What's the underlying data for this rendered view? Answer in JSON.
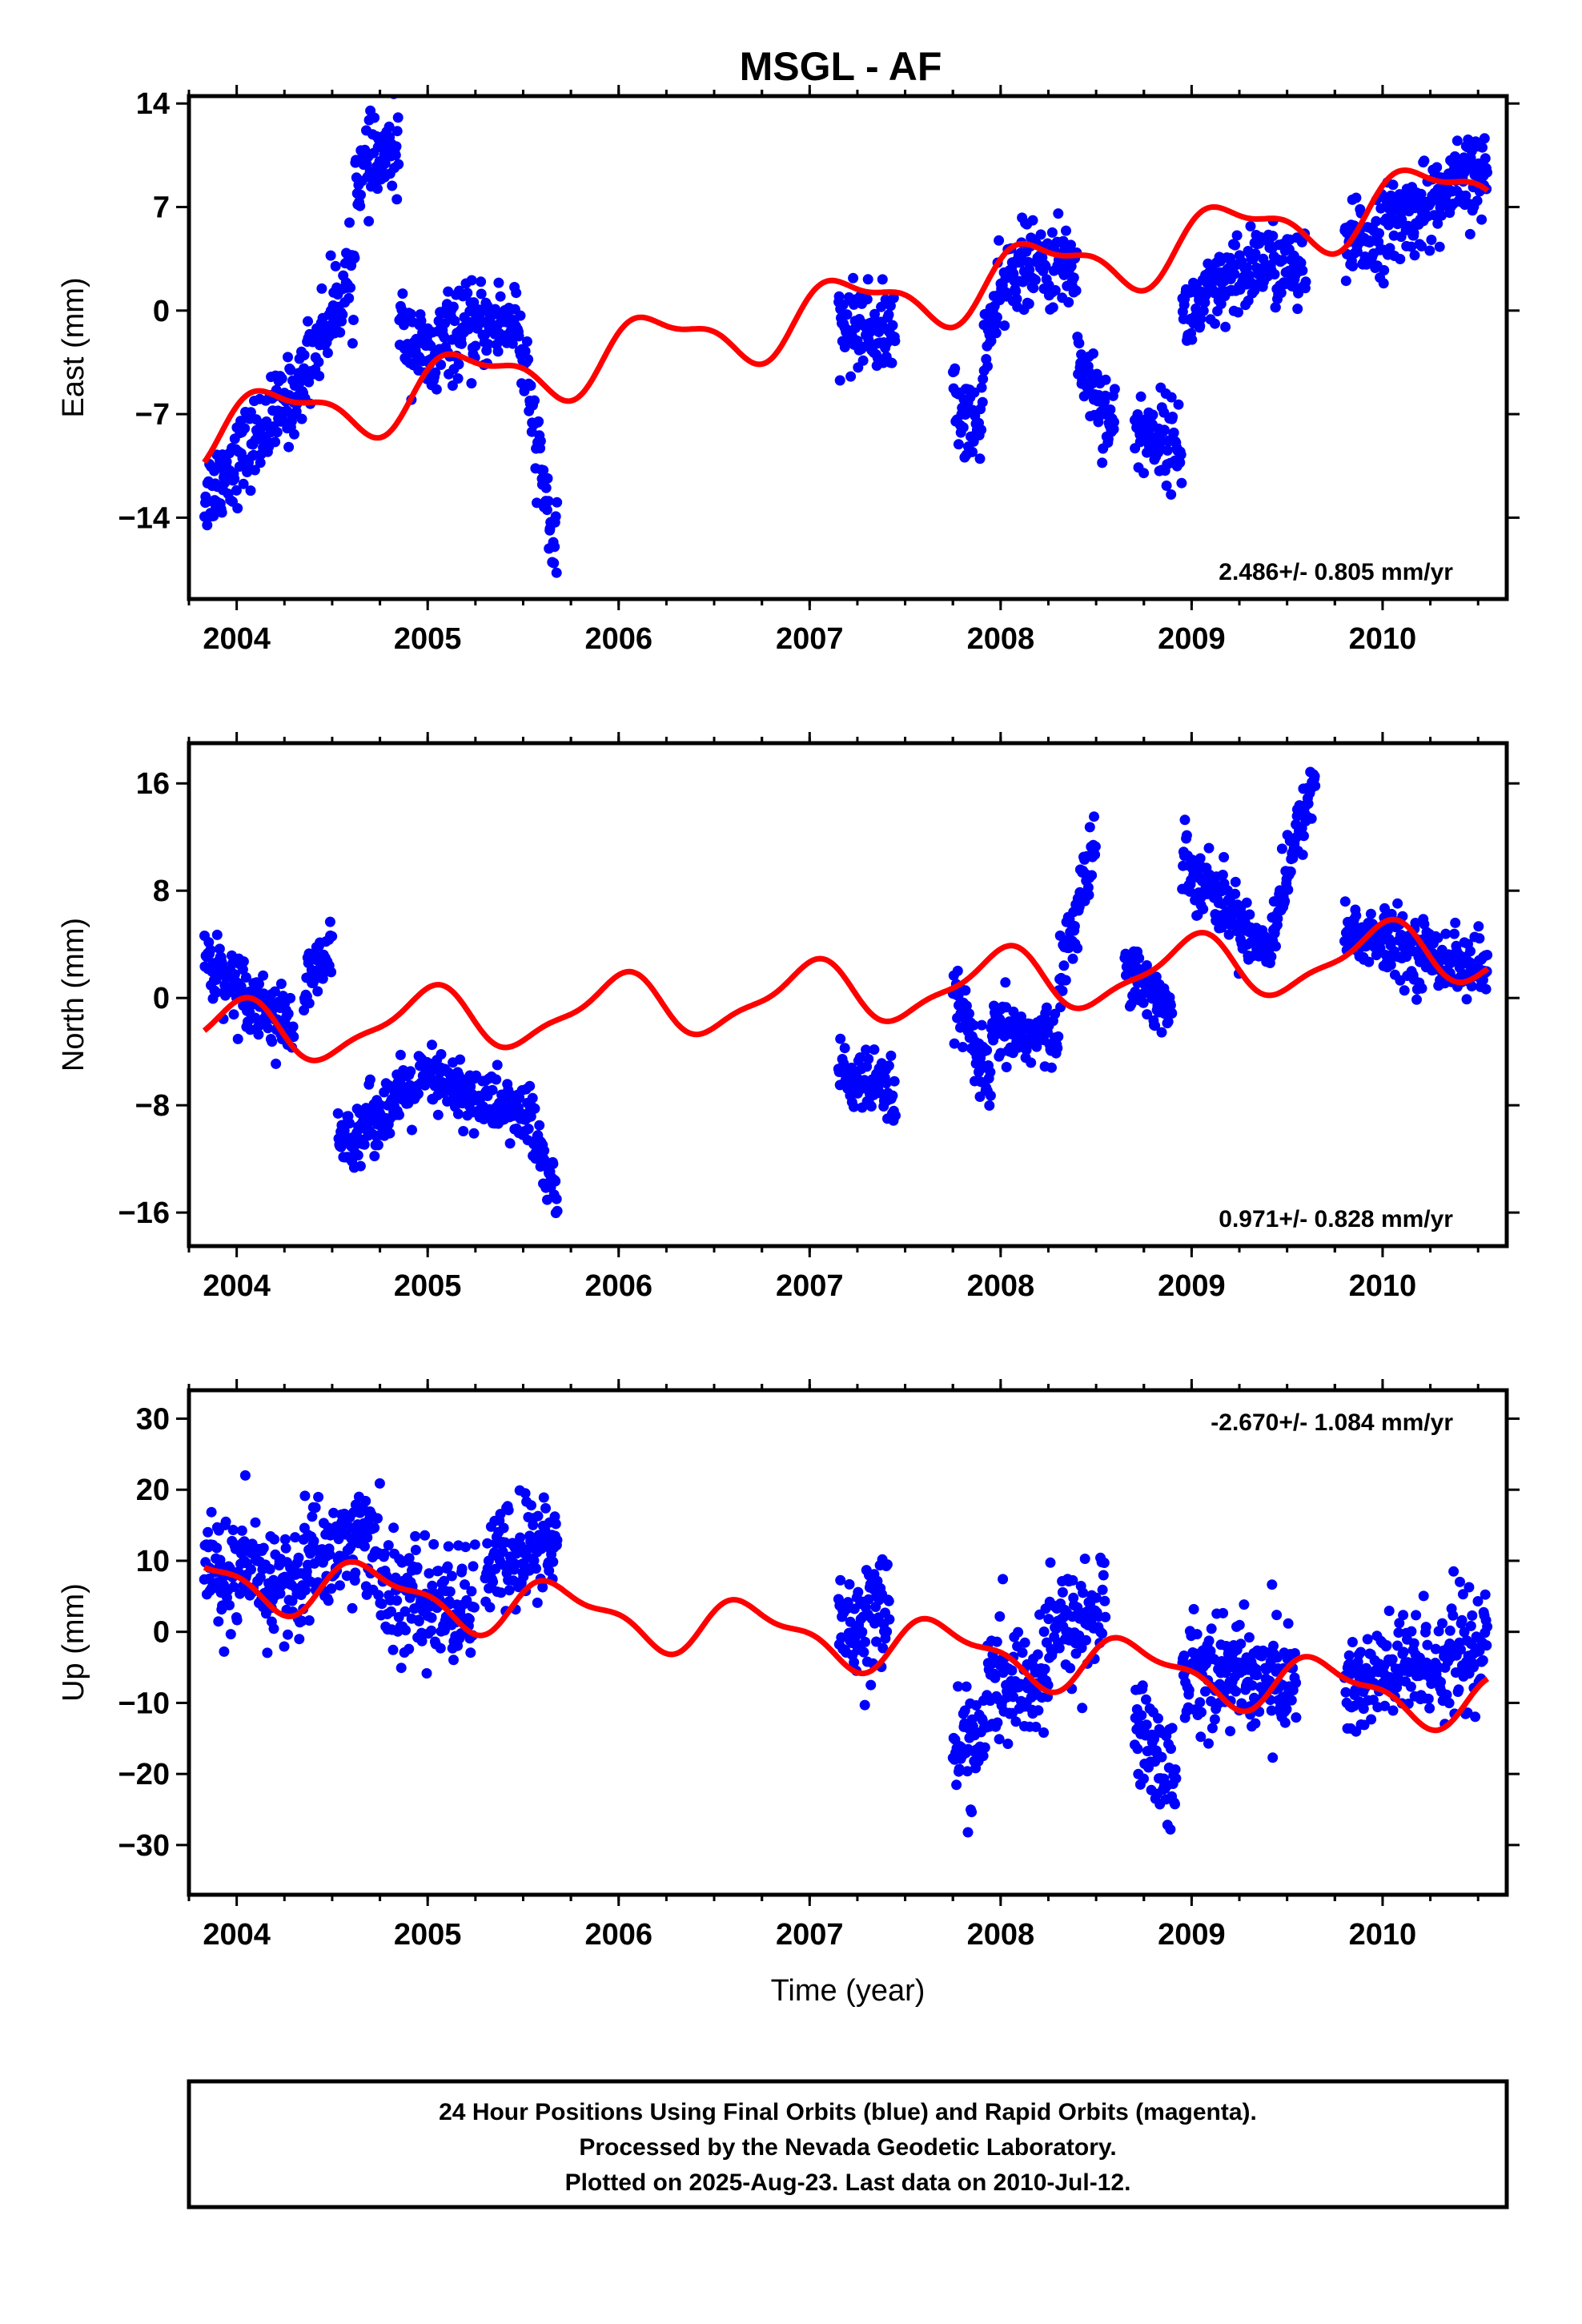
{
  "title": "MSGL - AF",
  "colors": {
    "final_orbits": "#0000ff",
    "model": "#ff0000",
    "frame": "#000000"
  },
  "chart_data": [
    {
      "type": "scatter",
      "panel": "east",
      "ylabel": "East (mm)",
      "xlabel": "",
      "xlim": [
        2003.75,
        2010.65
      ],
      "ylim": [
        -19.5,
        14.5
      ],
      "xticks": [
        2004,
        2005,
        2006,
        2007,
        2008,
        2009,
        2010
      ],
      "xtick_labels": [
        "2004",
        "2005",
        "2006",
        "2007",
        "2008",
        "2009",
        "2010"
      ],
      "yticks": [
        -14,
        -7,
        0,
        7,
        14
      ],
      "ytick_labels": [
        "−14",
        "−7",
        "0",
        "7",
        "14"
      ],
      "rate_text": "2.486+/- 0.805 mm/yr",
      "rate_position": "bottom-right",
      "segments": [
        {
          "x0": 2003.83,
          "x1": 2004.35,
          "y0": -12.5,
          "y1": -5.0
        },
        {
          "x0": 2004.35,
          "x1": 2004.62,
          "y0": -4.0,
          "y1": 3.0
        },
        {
          "x0": 2004.62,
          "x1": 2004.85,
          "y0": 9.0,
          "y1": 11.0
        },
        {
          "x0": 2004.85,
          "x1": 2005.05,
          "y0": -1.0,
          "y1": -4.0
        },
        {
          "x0": 2005.05,
          "x1": 2005.45,
          "y0": -2.0,
          "y1": -0.5
        },
        {
          "x0": 2005.45,
          "x1": 2005.68,
          "y0": 0.5,
          "y1": -17.5
        },
        {
          "x0": 2007.15,
          "x1": 2007.45,
          "y0": -1.0,
          "y1": -1.5
        },
        {
          "x0": 2007.75,
          "x1": 2007.9,
          "y0": -6.0,
          "y1": -8.5
        },
        {
          "x0": 2007.9,
          "x1": 2008.05,
          "y0": -3.0,
          "y1": 2.5
        },
        {
          "x0": 2008.05,
          "x1": 2008.4,
          "y0": 3.0,
          "y1": 3.0
        },
        {
          "x0": 2008.4,
          "x1": 2008.6,
          "y0": -3.0,
          "y1": -8.0
        },
        {
          "x0": 2008.7,
          "x1": 2008.95,
          "y0": -8.0,
          "y1": -9.0
        },
        {
          "x0": 2008.95,
          "x1": 2009.3,
          "y0": -0.5,
          "y1": 2.5
        },
        {
          "x0": 2009.3,
          "x1": 2009.6,
          "y0": 3.5,
          "y1": 2.5
        },
        {
          "x0": 2009.8,
          "x1": 2010.55,
          "y0": 4.0,
          "y1": 9.5
        }
      ],
      "noise": 1.4,
      "trend": {
        "y2004": -7.8,
        "rate": 2.486
      },
      "seasonal": [
        {
          "amp": 2.0,
          "period": 1.0,
          "phase": 0.3
        },
        {
          "amp": 0.8,
          "period": 0.5,
          "phase": 1.2
        }
      ],
      "model_xlim": [
        2003.83,
        2010.55
      ]
    },
    {
      "type": "scatter",
      "panel": "north",
      "ylabel": "North (mm)",
      "xlabel": "",
      "xlim": [
        2003.75,
        2010.65
      ],
      "ylim": [
        -18.5,
        19.0
      ],
      "xticks": [
        2004,
        2005,
        2006,
        2007,
        2008,
        2009,
        2010
      ],
      "xtick_labels": [
        "2004",
        "2005",
        "2006",
        "2007",
        "2008",
        "2009",
        "2010"
      ],
      "yticks": [
        -16,
        -8,
        0,
        8,
        16
      ],
      "ytick_labels": [
        "−16",
        "−8",
        "0",
        "8",
        "16"
      ],
      "rate_text": "0.971+/- 0.828 mm/yr",
      "rate_position": "bottom-right",
      "segments": [
        {
          "x0": 2003.83,
          "x1": 2004.3,
          "y0": 3.0,
          "y1": -2.5
        },
        {
          "x0": 2004.35,
          "x1": 2004.5,
          "y0": 0.5,
          "y1": 3.5
        },
        {
          "x0": 2004.53,
          "x1": 2005.0,
          "y0": -11.0,
          "y1": -6.0
        },
        {
          "x0": 2005.0,
          "x1": 2005.55,
          "y0": -6.0,
          "y1": -9.0
        },
        {
          "x0": 2005.55,
          "x1": 2005.68,
          "y0": -10.0,
          "y1": -15.0
        },
        {
          "x0": 2007.15,
          "x1": 2007.45,
          "y0": -5.5,
          "y1": -7.5
        },
        {
          "x0": 2007.75,
          "x1": 2007.95,
          "y0": 0.5,
          "y1": -7.0
        },
        {
          "x0": 2007.95,
          "x1": 2008.3,
          "y0": -2.5,
          "y1": -3.0
        },
        {
          "x0": 2008.3,
          "x1": 2008.5,
          "y0": 1.0,
          "y1": 12.0
        },
        {
          "x0": 2008.65,
          "x1": 2008.9,
          "y0": 3.0,
          "y1": -1.5
        },
        {
          "x0": 2008.95,
          "x1": 2009.4,
          "y0": 10.5,
          "y1": 3.5
        },
        {
          "x0": 2009.4,
          "x1": 2009.65,
          "y0": 4.0,
          "y1": 17.0
        },
        {
          "x0": 2009.8,
          "x1": 2010.55,
          "y0": 5.0,
          "y1": 2.0
        }
      ],
      "noise": 1.2,
      "trend": {
        "y2004": -2.7,
        "rate": 0.971
      },
      "seasonal": [
        {
          "amp": 2.2,
          "period": 1.0,
          "phase": 1.6
        },
        {
          "amp": 0.7,
          "period": 0.5,
          "phase": 0.4
        }
      ],
      "model_xlim": [
        2003.83,
        2010.55
      ]
    },
    {
      "type": "scatter",
      "panel": "up",
      "ylabel": "Up (mm)",
      "xlabel": "Time (year)",
      "xlim": [
        2003.75,
        2010.65
      ],
      "ylim": [
        -37.0,
        34.0
      ],
      "xticks": [
        2004,
        2005,
        2006,
        2007,
        2008,
        2009,
        2010
      ],
      "xtick_labels": [
        "2004",
        "2005",
        "2006",
        "2007",
        "2008",
        "2009",
        "2010"
      ],
      "yticks": [
        -30,
        -20,
        -10,
        0,
        10,
        20,
        30
      ],
      "ytick_labels": [
        "−30",
        "−20",
        "−10",
        "0",
        "10",
        "20",
        "30"
      ],
      "rate_text": "-2.670+/- 1.084 mm/yr",
      "rate_position": "top-right",
      "segments": [
        {
          "x0": 2003.83,
          "x1": 2004.35,
          "y0": 9.0,
          "y1": 6.0
        },
        {
          "x0": 2004.35,
          "x1": 2004.75,
          "y0": 10.0,
          "y1": 14.0
        },
        {
          "x0": 2004.75,
          "x1": 2005.25,
          "y0": 5.0,
          "y1": 3.0
        },
        {
          "x0": 2005.3,
          "x1": 2005.68,
          "y0": 9.0,
          "y1": 13.0
        },
        {
          "x0": 2007.15,
          "x1": 2007.42,
          "y0": 0.0,
          "y1": 4.0
        },
        {
          "x0": 2007.75,
          "x1": 2007.92,
          "y0": -17.0,
          "y1": -15.0
        },
        {
          "x0": 2007.92,
          "x1": 2008.25,
          "y0": -8.0,
          "y1": -7.0
        },
        {
          "x0": 2008.25,
          "x1": 2008.55,
          "y0": 0.0,
          "y1": 3.0
        },
        {
          "x0": 2008.7,
          "x1": 2008.92,
          "y0": -12.0,
          "y1": -22.0
        },
        {
          "x0": 2008.95,
          "x1": 2009.55,
          "y0": -5.0,
          "y1": -7.0
        },
        {
          "x0": 2009.8,
          "x1": 2010.55,
          "y0": -8.0,
          "y1": -2.0
        }
      ],
      "noise": 4.0,
      "trend": {
        "y2004": 7.5,
        "rate": -2.67
      },
      "seasonal": [
        {
          "amp": 3.5,
          "period": 1.0,
          "phase": 3.4
        },
        {
          "amp": 1.5,
          "period": 0.5,
          "phase": 0.9
        }
      ],
      "model_xlim": [
        2003.83,
        2010.55
      ]
    }
  ],
  "footer": {
    "line1": "24 Hour Positions Using Final Orbits (blue) and Rapid Orbits (magenta).",
    "line2": "Processed by the Nevada Geodetic Laboratory.",
    "line3": "Plotted on 2025-Aug-23. Last data on 2010-Jul-12."
  }
}
